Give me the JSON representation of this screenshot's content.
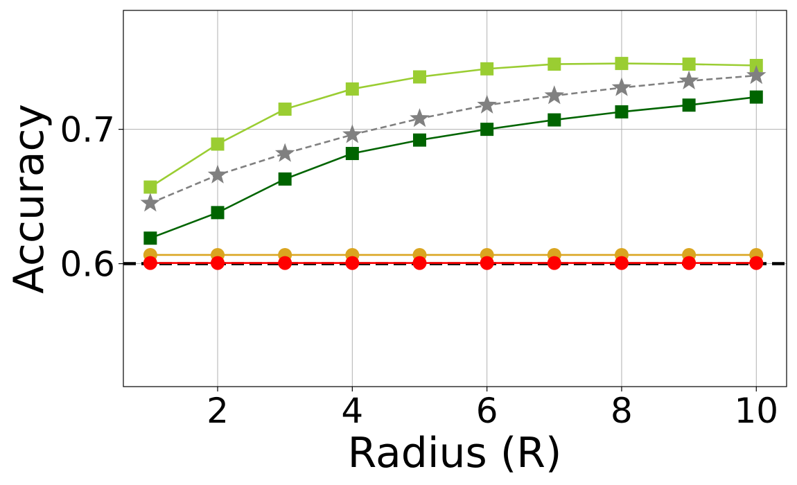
{
  "chart_data": {
    "type": "line",
    "title": "",
    "xlabel": "Radius (R)",
    "ylabel": "Accuracy",
    "xlim": [
      0.6,
      10.45
    ],
    "ylim": [
      0.5085,
      0.7885
    ],
    "xticks": [
      2,
      4,
      6,
      8,
      10
    ],
    "xtick_labels": [
      "2",
      "4",
      "6",
      "8",
      "10"
    ],
    "yticks": [
      0.6,
      0.7
    ],
    "ytick_labels": [
      "0.6",
      "0.7"
    ],
    "grid": true,
    "legend": "none",
    "x": [
      1,
      2,
      3,
      4,
      5,
      6,
      7,
      8,
      9,
      10
    ],
    "series": [
      {
        "color": "#9acd32",
        "marker": "square",
        "linestyle": "solid",
        "values": [
          0.657,
          0.689,
          0.715,
          0.73,
          0.739,
          0.745,
          0.7485,
          0.749,
          0.7485,
          0.7475
        ]
      },
      {
        "color": "#808080",
        "marker": "star",
        "linestyle": "dashed",
        "values": [
          0.645,
          0.666,
          0.682,
          0.696,
          0.708,
          0.718,
          0.725,
          0.731,
          0.736,
          0.74
        ]
      },
      {
        "color": "#006400",
        "marker": "square",
        "linestyle": "solid",
        "values": [
          0.619,
          0.638,
          0.663,
          0.682,
          0.692,
          0.7,
          0.707,
          0.713,
          0.718,
          0.724
        ]
      },
      {
        "color": "#daa520",
        "marker": "circle",
        "linestyle": "solid",
        "values": [
          0.6065,
          0.6065,
          0.6065,
          0.6065,
          0.6065,
          0.6065,
          0.6065,
          0.6065,
          0.6065,
          0.6065
        ]
      },
      {
        "color": "#ff0000",
        "marker": "circle",
        "linestyle": "solid",
        "values": [
          0.6005,
          0.6005,
          0.6005,
          0.6005,
          0.6005,
          0.6005,
          0.6005,
          0.6005,
          0.6005,
          0.6005
        ]
      }
    ],
    "reference_line": {
      "y": 0.6,
      "color": "#000000",
      "linestyle": "dashed"
    }
  }
}
